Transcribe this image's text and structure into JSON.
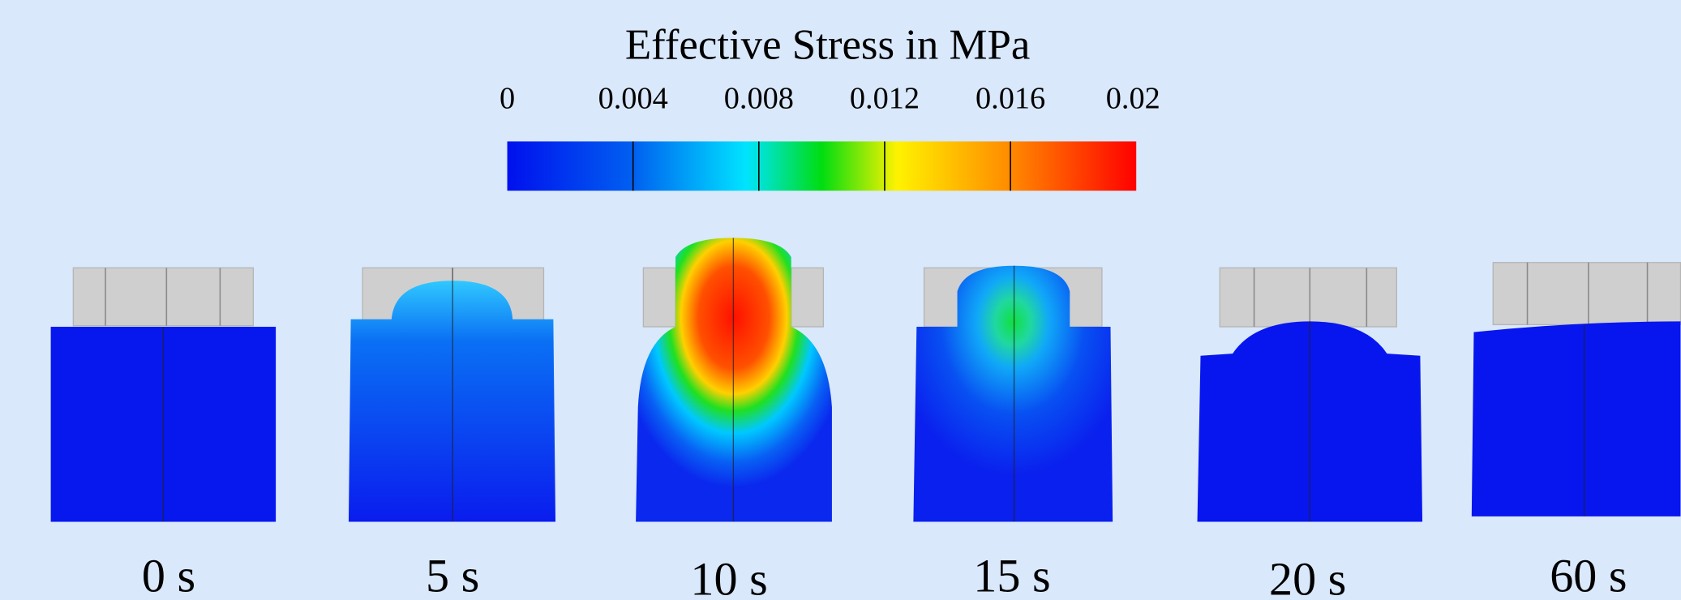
{
  "title": "Effective Stress in MPa",
  "colorbar": {
    "ticks": [
      0,
      0.004,
      0.008,
      0.012,
      0.016,
      0.02
    ]
  },
  "frames": [
    {
      "label": "0 s"
    },
    {
      "label": "5 s"
    },
    {
      "label": "10 s"
    },
    {
      "label": "15 s"
    },
    {
      "label": "20 s"
    },
    {
      "label": "60 s"
    }
  ]
}
